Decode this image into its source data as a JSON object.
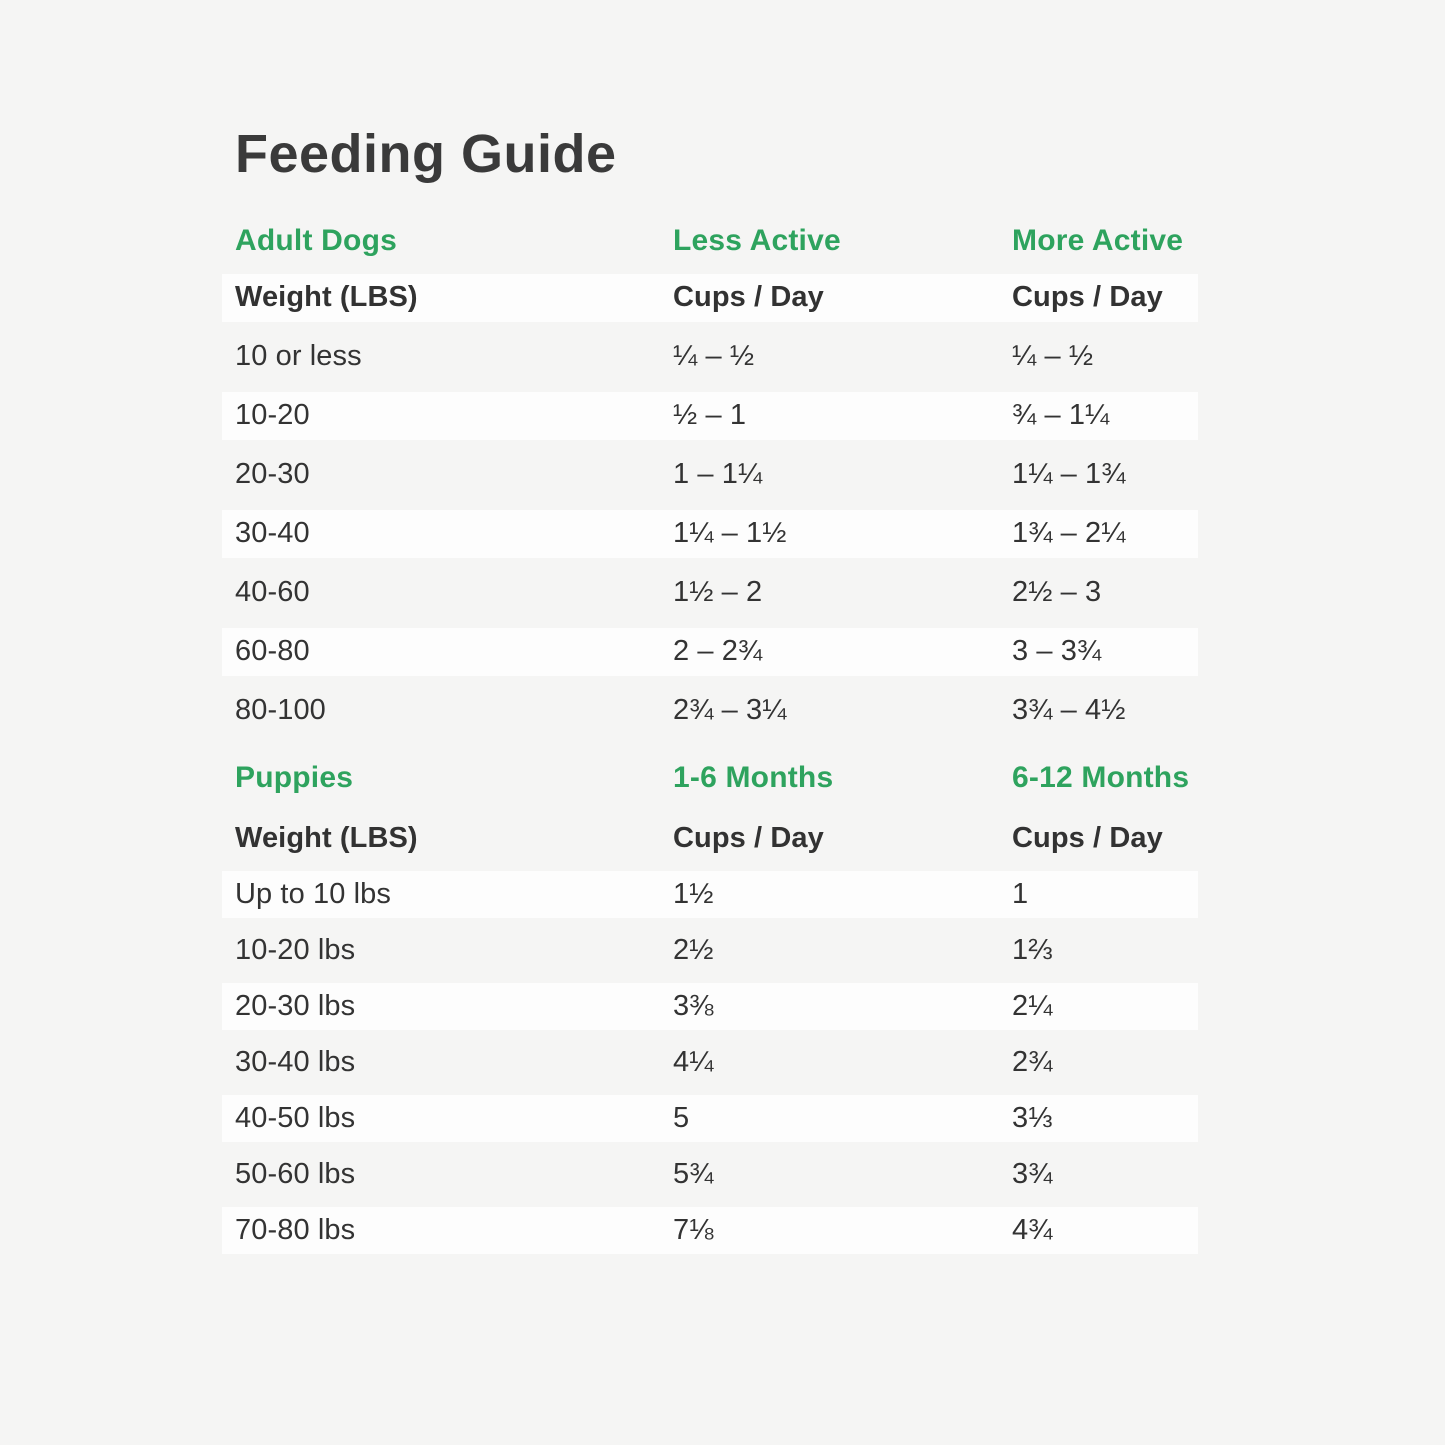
{
  "page": {
    "title": "Feeding Guide",
    "colors": {
      "background": "#f5f5f4",
      "row_band": "#fdfdfd",
      "accent_green": "#2ea35e",
      "heading_text": "#3a3a3a",
      "body_text": "#333333"
    }
  },
  "chart_data": [
    {
      "type": "table",
      "section": "Adult Dogs",
      "group_headers": [
        "Adult Dogs",
        "Less Active",
        "More Active"
      ],
      "columns": [
        "Weight (LBS)",
        "Cups / Day",
        "Cups / Day"
      ],
      "rows": [
        [
          "10 or less",
          "¼ – ½",
          "¼ – ½"
        ],
        [
          "10-20",
          "½ – 1",
          "¾ – 1¼"
        ],
        [
          "20-30",
          "1 – 1¼",
          "1¼ – 1¾"
        ],
        [
          "30-40",
          "1¼ – 1½",
          "1¾ – 2¼"
        ],
        [
          "40-60",
          "1½ – 2",
          "2½ – 3"
        ],
        [
          "60-80",
          "2 – 2¾",
          "3 – 3¾"
        ],
        [
          "80-100",
          "2¾ – 3¼",
          "3¾ – 4½"
        ]
      ]
    },
    {
      "type": "table",
      "section": "Puppies",
      "group_headers": [
        "Puppies",
        "1-6 Months",
        "6-12 Months"
      ],
      "columns": [
        "Weight (LBS)",
        "Cups / Day",
        "Cups / Day"
      ],
      "rows": [
        [
          "Up to 10 lbs",
          "1½",
          "1"
        ],
        [
          "10-20 lbs",
          "2½",
          "1⅔"
        ],
        [
          "20-30 lbs",
          "3⅜",
          "2¼"
        ],
        [
          "30-40 lbs",
          "4¼",
          "2¾"
        ],
        [
          "40-50 lbs",
          "5",
          "3⅓"
        ],
        [
          "50-60 lbs",
          "5¾",
          "3¾"
        ],
        [
          "70-80 lbs",
          "7⅛",
          "4¾"
        ]
      ]
    }
  ]
}
